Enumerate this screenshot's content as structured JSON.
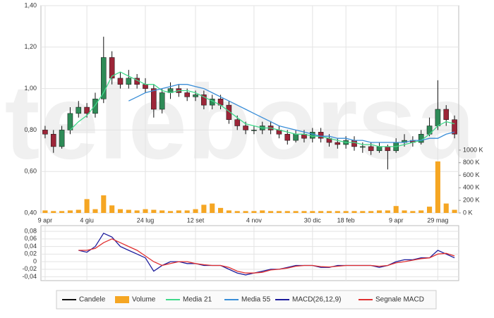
{
  "watermark": "teleborsa",
  "chart_data": [
    {
      "type": "candlestick",
      "categories": [
        "9 apr",
        null,
        null,
        null,
        null,
        "4 giu",
        null,
        null,
        null,
        null,
        null,
        null,
        "24 lug",
        null,
        null,
        null,
        null,
        null,
        "12 set",
        null,
        null,
        null,
        null,
        null,
        null,
        "4 nov",
        null,
        null,
        null,
        null,
        null,
        null,
        "30 dic",
        null,
        null,
        null,
        "18 feb",
        null,
        null,
        null,
        null,
        null,
        "9 apr",
        null,
        null,
        null,
        null,
        "29 mag",
        null,
        null
      ],
      "ylim": [
        0.4,
        1.4
      ],
      "yticks": [
        {
          "value": 0.4,
          "label": "0,40"
        },
        {
          "value": 0.6,
          "label": "0,60"
        },
        {
          "value": 0.8,
          "label": "0,80"
        },
        {
          "value": 1.0,
          "label": "1,00"
        },
        {
          "value": 1.2,
          "label": "1,20"
        },
        {
          "value": 1.4,
          "label": "1,40"
        }
      ],
      "y2lim": [
        0,
        3300
      ],
      "y2ticks": [
        {
          "value": 0,
          "label": "0 K"
        },
        {
          "value": 200,
          "label": "200 K"
        },
        {
          "value": 400,
          "label": "400 K"
        },
        {
          "value": 600,
          "label": "600 K"
        },
        {
          "value": 800,
          "label": "800 K"
        },
        {
          "value": 1000,
          "label": "1000 K"
        }
      ],
      "grid": true,
      "series": [
        {
          "name": "Candele",
          "type": "candlestick",
          "color": "#111111",
          "up_color": "#2e8b57",
          "down_color": "#9c2538",
          "open": [
            0.8,
            0.78,
            0.72,
            0.8,
            0.88,
            0.91,
            0.88,
            0.95,
            1.15,
            1.05,
            1.02,
            1.05,
            1.02,
            1.0,
            0.9,
            0.98,
            1.0,
            0.98,
            0.96,
            0.97,
            0.92,
            0.95,
            0.92,
            0.85,
            0.82,
            0.8,
            0.8,
            0.82,
            0.8,
            0.78,
            0.75,
            0.78,
            0.76,
            0.79,
            0.76,
            0.74,
            0.73,
            0.75,
            0.72,
            0.72,
            0.7,
            0.72,
            0.7,
            0.74,
            0.75,
            0.74,
            0.78,
            0.82,
            0.9,
            0.85
          ],
          "high": [
            0.82,
            0.8,
            0.82,
            0.91,
            0.94,
            0.93,
            0.98,
            1.25,
            1.18,
            1.08,
            1.09,
            1.07,
            1.05,
            1.02,
            1.0,
            1.03,
            1.02,
            1.0,
            0.99,
            0.99,
            0.97,
            0.97,
            0.94,
            0.87,
            0.84,
            0.82,
            0.84,
            0.84,
            0.82,
            0.8,
            0.8,
            0.8,
            0.81,
            0.81,
            0.78,
            0.76,
            0.77,
            0.77,
            0.74,
            0.74,
            0.74,
            0.73,
            0.76,
            0.78,
            0.77,
            0.8,
            0.86,
            1.04,
            0.92,
            0.87
          ],
          "low": [
            0.76,
            0.69,
            0.71,
            0.78,
            0.86,
            0.86,
            0.86,
            0.93,
            1.02,
            1.0,
            1.0,
            1.0,
            0.98,
            0.86,
            0.88,
            0.95,
            0.96,
            0.94,
            0.94,
            0.9,
            0.9,
            0.9,
            0.83,
            0.8,
            0.78,
            0.78,
            0.78,
            0.78,
            0.76,
            0.73,
            0.74,
            0.74,
            0.74,
            0.74,
            0.72,
            0.71,
            0.71,
            0.7,
            0.69,
            0.68,
            0.69,
            0.61,
            0.69,
            0.72,
            0.72,
            0.73,
            0.77,
            0.8,
            0.82,
            0.76
          ],
          "close": [
            0.78,
            0.72,
            0.8,
            0.88,
            0.91,
            0.88,
            0.95,
            1.15,
            1.05,
            1.02,
            1.05,
            1.02,
            1.0,
            0.9,
            0.98,
            1.0,
            0.98,
            0.96,
            0.97,
            0.92,
            0.95,
            0.92,
            0.85,
            0.82,
            0.8,
            0.8,
            0.82,
            0.8,
            0.78,
            0.75,
            0.78,
            0.76,
            0.79,
            0.76,
            0.74,
            0.73,
            0.75,
            0.72,
            0.72,
            0.7,
            0.72,
            0.7,
            0.74,
            0.75,
            0.74,
            0.78,
            0.82,
            0.9,
            0.85,
            0.78
          ]
        },
        {
          "name": "Volume",
          "type": "bar",
          "axis": "y2",
          "color": "#f5a623",
          "values": [
            40,
            30,
            30,
            40,
            50,
            220,
            60,
            280,
            120,
            60,
            50,
            40,
            60,
            50,
            40,
            30,
            40,
            40,
            60,
            130,
            150,
            80,
            40,
            30,
            30,
            30,
            40,
            30,
            30,
            30,
            30,
            30,
            30,
            30,
            30,
            30,
            30,
            30,
            30,
            30,
            40,
            40,
            110,
            40,
            30,
            40,
            100,
            820,
            150,
            50
          ]
        },
        {
          "name": "Media 21",
          "type": "line",
          "color": "#40d98a",
          "values": [
            null,
            null,
            null,
            0.8,
            0.84,
            0.87,
            0.92,
            0.98,
            1.06,
            1.08,
            1.06,
            1.04,
            1.02,
            1.02,
            0.99,
            0.98,
            0.99,
            0.99,
            0.98,
            0.96,
            0.94,
            0.92,
            0.89,
            0.86,
            0.83,
            0.82,
            0.81,
            0.81,
            0.8,
            0.79,
            0.78,
            0.78,
            0.77,
            0.77,
            0.76,
            0.75,
            0.74,
            0.74,
            0.73,
            0.73,
            0.72,
            0.72,
            0.72,
            0.73,
            0.74,
            0.75,
            0.78,
            0.82,
            0.84,
            0.83
          ]
        },
        {
          "name": "Media 55",
          "type": "line",
          "color": "#3a8ed8",
          "values": [
            null,
            null,
            null,
            null,
            null,
            null,
            null,
            null,
            null,
            null,
            0.94,
            0.96,
            0.98,
            0.99,
            1.0,
            1.01,
            1.02,
            1.02,
            1.01,
            1.0,
            0.98,
            0.96,
            0.94,
            0.92,
            0.9,
            0.88,
            0.86,
            0.84,
            0.82,
            0.81,
            0.8,
            0.79,
            0.78,
            0.77,
            0.77,
            0.76,
            0.76,
            0.75,
            0.75,
            0.74,
            0.74,
            0.74,
            0.74,
            0.74,
            0.75,
            0.75,
            0.76,
            0.76,
            0.78,
            0.79
          ]
        }
      ]
    },
    {
      "type": "line",
      "ylim": [
        -0.05,
        0.095
      ],
      "yticks": [
        {
          "value": -0.04,
          "label": "-0,04"
        },
        {
          "value": -0.02,
          "label": "-0,02"
        },
        0,
        {
          "value": 0.02,
          "label": "0,02"
        },
        {
          "value": 0.04,
          "label": "0,04"
        },
        {
          "value": 0.06,
          "label": "0,06"
        },
        {
          "value": 0.08,
          "label": "0,08"
        }
      ],
      "grid": true,
      "series": [
        {
          "name": "MACD(26,12,9)",
          "color": "#1c1c9c",
          "values": [
            null,
            null,
            null,
            null,
            0.03,
            0.025,
            0.04,
            0.075,
            0.065,
            0.04,
            0.03,
            0.02,
            0.01,
            -0.025,
            -0.01,
            0.0,
            0.0,
            -0.005,
            -0.005,
            -0.01,
            -0.01,
            -0.01,
            -0.02,
            -0.03,
            -0.035,
            -0.03,
            -0.025,
            -0.02,
            -0.02,
            -0.015,
            -0.01,
            -0.01,
            -0.01,
            -0.015,
            -0.015,
            -0.01,
            -0.01,
            -0.01,
            -0.01,
            -0.01,
            -0.015,
            -0.01,
            0.0,
            0.005,
            0.005,
            0.01,
            0.01,
            0.03,
            0.02,
            0.01
          ]
        },
        {
          "name": "Segnale MACD",
          "color": "#e03030",
          "values": [
            null,
            null,
            null,
            null,
            0.03,
            0.03,
            0.035,
            0.05,
            0.06,
            0.05,
            0.04,
            0.03,
            0.015,
            0.0,
            -0.01,
            -0.005,
            0.0,
            0.0,
            -0.005,
            -0.008,
            -0.01,
            -0.01,
            -0.015,
            -0.025,
            -0.03,
            -0.03,
            -0.028,
            -0.022,
            -0.02,
            -0.017,
            -0.012,
            -0.01,
            -0.01,
            -0.013,
            -0.014,
            -0.012,
            -0.01,
            -0.01,
            -0.01,
            -0.01,
            -0.012,
            -0.01,
            -0.003,
            0.0,
            0.004,
            0.008,
            0.01,
            0.02,
            0.022,
            0.015
          ]
        }
      ]
    }
  ]
}
